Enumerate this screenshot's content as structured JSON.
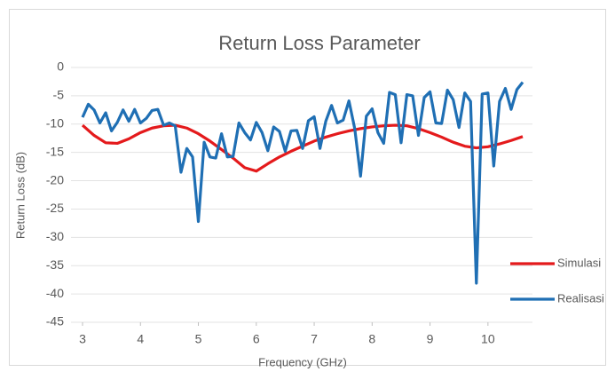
{
  "chart_data": {
    "type": "line",
    "title": "Return Loss Parameter",
    "xlabel": "Frequency (GHz)",
    "ylabel": "Return Loss (dB)",
    "xlim": [
      3,
      10.6
    ],
    "xticks": [
      3,
      4,
      5,
      6,
      7,
      8,
      9,
      10
    ],
    "ylim": [
      -45,
      0
    ],
    "yticks": [
      0,
      -5,
      -10,
      -15,
      -20,
      -25,
      -30,
      -35,
      -40,
      -45
    ],
    "grid": true,
    "legend": "right",
    "series": [
      {
        "name": "Simulasi",
        "color": "#e41a1c",
        "x": [
          3,
          3.2,
          3.4,
          3.6,
          3.8,
          4,
          4.2,
          4.4,
          4.6,
          4.8,
          5,
          5.2,
          5.4,
          5.6,
          5.8,
          6,
          6.2,
          6.4,
          6.6,
          6.8,
          7,
          7.2,
          7.4,
          7.6,
          7.8,
          8,
          8.2,
          8.4,
          8.6,
          8.8,
          9,
          9.2,
          9.4,
          9.6,
          9.8,
          10,
          10.2,
          10.4,
          10.6
        ],
        "values": [
          -10.2,
          -12,
          -13.3,
          -13.4,
          -12.6,
          -11.5,
          -10.7,
          -10.3,
          -10.2,
          -10.7,
          -11.7,
          -13,
          -14.5,
          -16,
          -17.7,
          -18.3,
          -17,
          -15.8,
          -14.8,
          -13.9,
          -13,
          -12.3,
          -11.7,
          -11.2,
          -10.8,
          -10.5,
          -10.3,
          -10.2,
          -10.3,
          -10.8,
          -11.5,
          -12.3,
          -13.2,
          -13.9,
          -14.2,
          -14,
          -13.5,
          -12.9,
          -12.2
        ]
      },
      {
        "name": "Realisasi",
        "color": "#1f6fb4",
        "x": [
          3,
          3.1,
          3.2,
          3.3,
          3.4,
          3.5,
          3.6,
          3.7,
          3.8,
          3.9,
          4,
          4.1,
          4.2,
          4.3,
          4.4,
          4.5,
          4.6,
          4.7,
          4.8,
          4.9,
          5,
          5.1,
          5.2,
          5.3,
          5.4,
          5.5,
          5.6,
          5.7,
          5.8,
          5.9,
          6,
          6.1,
          6.2,
          6.3,
          6.4,
          6.5,
          6.6,
          6.7,
          6.8,
          6.9,
          7,
          7.1,
          7.2,
          7.3,
          7.4,
          7.5,
          7.6,
          7.7,
          7.8,
          7.9,
          8,
          8.1,
          8.2,
          8.3,
          8.4,
          8.5,
          8.6,
          8.7,
          8.8,
          8.9,
          9,
          9.1,
          9.2,
          9.3,
          9.4,
          9.5,
          9.6,
          9.7,
          9.8,
          9.9,
          10,
          10.1,
          10.2,
          10.3,
          10.4,
          10.5,
          10.6
        ],
        "values": [
          -8.8,
          -6.5,
          -7.5,
          -9.8,
          -8,
          -11.2,
          -9.7,
          -7.5,
          -9.5,
          -7.4,
          -9.8,
          -9,
          -7.6,
          -7.4,
          -10.2,
          -9.8,
          -10.3,
          -18.5,
          -14.3,
          -15.8,
          -27.2,
          -13.2,
          -15.8,
          -16,
          -11.7,
          -15.8,
          -15.7,
          -9.8,
          -11.5,
          -12.8,
          -9.7,
          -11.5,
          -14.7,
          -10.5,
          -11.3,
          -14.8,
          -11.2,
          -11.1,
          -14.3,
          -9.4,
          -8.7,
          -14.3,
          -9.5,
          -6.7,
          -9.8,
          -9.3,
          -5.9,
          -10.8,
          -19.2,
          -8.6,
          -7.3,
          -11.5,
          -13.4,
          -4.4,
          -4.8,
          -13.3,
          -4.8,
          -5,
          -12,
          -5.3,
          -4.3,
          -9.8,
          -9.9,
          -4,
          -5.7,
          -10.6,
          -4.5,
          -6,
          -38.1,
          -4.7,
          -4.5,
          -17.4,
          -6,
          -3.7,
          -7.4,
          -3.9,
          -2.6
        ]
      }
    ]
  }
}
